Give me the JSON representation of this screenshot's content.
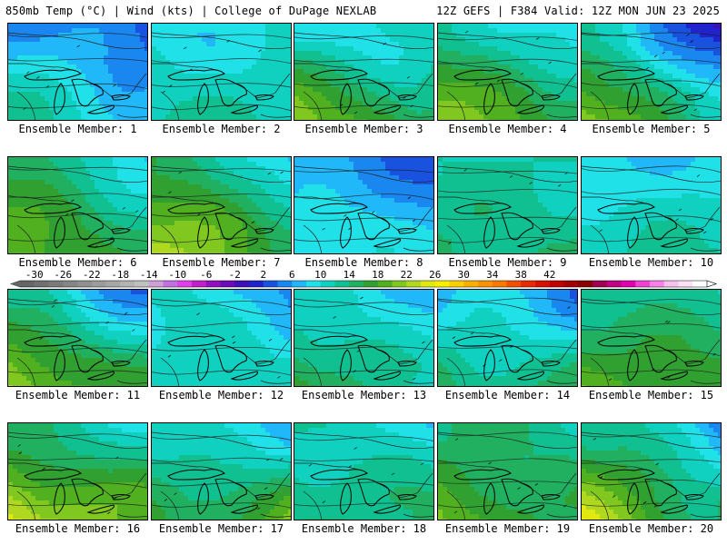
{
  "header": {
    "left_text": "850mb Temp (°C) | Wind (kts) | College of DuPage NEXLAB",
    "right_text": "12Z GEFS | F384 Valid: 12Z MON JUN 23 2025"
  },
  "panel_label_prefix": "Ensemble Member: ",
  "members": [
    {
      "label": "Ensemble Member: 1",
      "base": 8,
      "warm_sw": 4,
      "warm_se": 0,
      "cool_north": 6,
      "cool_ne": 2
    },
    {
      "label": "Ensemble Member: 2",
      "base": 10,
      "warm_sw": 2,
      "warm_se": 2,
      "cool_north": 2,
      "cool_ne": 0
    },
    {
      "label": "Ensemble Member: 3",
      "base": 12,
      "warm_sw": 8,
      "warm_se": 2,
      "cool_north": 4,
      "cool_ne": 0
    },
    {
      "label": "Ensemble Member: 4",
      "base": 14,
      "warm_sw": 6,
      "warm_se": 2,
      "cool_north": 2,
      "cool_ne": 4
    },
    {
      "label": "Ensemble Member: 5",
      "base": 11,
      "warm_sw": 9,
      "warm_se": 0,
      "cool_north": 0,
      "cool_ne": 9
    },
    {
      "label": "Ensemble Member: 6",
      "base": 15,
      "warm_sw": 4,
      "warm_se": 0,
      "cool_north": 2,
      "cool_ne": 4
    },
    {
      "label": "Ensemble Member: 7",
      "base": 16,
      "warm_sw": 6,
      "warm_se": 0,
      "cool_north": 2,
      "cool_ne": 6
    },
    {
      "label": "Ensemble Member: 8",
      "base": 8,
      "warm_sw": 2,
      "warm_se": 0,
      "cool_north": 4,
      "cool_ne": 3
    },
    {
      "label": "Ensemble Member: 9",
      "base": 12,
      "warm_sw": 2,
      "warm_se": 2,
      "cool_north": 0,
      "cool_ne": 0
    },
    {
      "label": "Ensemble Member: 10",
      "base": 10,
      "warm_sw": 2,
      "warm_se": 2,
      "cool_north": 2,
      "cool_ne": 0
    },
    {
      "label": "Ensemble Member: 11",
      "base": 15,
      "warm_sw": 6,
      "warm_se": 0,
      "cool_north": 6,
      "cool_ne": 4
    },
    {
      "label": "Ensemble Member: 12",
      "base": 11,
      "warm_sw": 0,
      "warm_se": 0,
      "cool_north": 3,
      "cool_ne": 2
    },
    {
      "label": "Ensemble Member: 13",
      "base": 11,
      "warm_sw": 5,
      "warm_se": 0,
      "cool_north": 2,
      "cool_ne": 2
    },
    {
      "label": "Ensemble Member: 14",
      "base": 10,
      "warm_sw": 4,
      "warm_se": 4,
      "cool_north": 4,
      "cool_ne": 3
    },
    {
      "label": "Ensemble Member: 15",
      "base": 15,
      "warm_sw": 3,
      "warm_se": 2,
      "cool_north": 2,
      "cool_ne": 2
    },
    {
      "label": "Ensemble Member: 16",
      "base": 17,
      "warm_sw": 6,
      "warm_se": 2,
      "cool_north": 4,
      "cool_ne": 4
    },
    {
      "label": "Ensemble Member: 17",
      "base": 13,
      "warm_sw": 2,
      "warm_se": 6,
      "cool_north": 4,
      "cool_ne": 2
    },
    {
      "label": "Ensemble Member: 18",
      "base": 13,
      "warm_sw": 0,
      "warm_se": 2,
      "cool_north": 3,
      "cool_ne": 2
    },
    {
      "label": "Ensemble Member: 19",
      "base": 15,
      "warm_sw": 4,
      "warm_se": 0,
      "cool_north": 4,
      "cool_ne": 0
    },
    {
      "label": "Ensemble Member: 20",
      "base": 14,
      "warm_sw": 8,
      "warm_se": 0,
      "cool_north": 0,
      "cool_ne": 7
    }
  ],
  "legend": {
    "tick_labels": [
      "-30",
      "-26",
      "-22",
      "-18",
      "-14",
      "-10",
      "-6",
      "-2",
      "2",
      "6",
      "10",
      "14",
      "18",
      "22",
      "26",
      "30",
      "34",
      "38",
      "42"
    ],
    "tick_values": [
      -30,
      -26,
      -22,
      -18,
      -14,
      -10,
      -6,
      -2,
      2,
      6,
      10,
      14,
      18,
      22,
      26,
      30,
      34,
      38,
      42
    ],
    "min": -32,
    "max": 44,
    "step": 2,
    "colors": [
      "#666666",
      "#707070",
      "#7a7a7a",
      "#858585",
      "#909090",
      "#9b9b9b",
      "#a6a6a6",
      "#b3b3b3",
      "#c0c0c0",
      "#cfa0d6",
      "#c070e0",
      "#e040e8",
      "#c020c8",
      "#9010c0",
      "#6a0ab8",
      "#3d10b8",
      "#2222cc",
      "#1a52e0",
      "#1a86f0",
      "#20b8f8",
      "#20e0e8",
      "#10d0c0",
      "#10c090",
      "#20b060",
      "#30a030",
      "#50b020",
      "#80c820",
      "#b0d820",
      "#e0e810",
      "#f8f000",
      "#f8d000",
      "#f8b000",
      "#f89400",
      "#f87800",
      "#f05000",
      "#e82a00",
      "#d81000",
      "#c00000",
      "#a00000",
      "#880000",
      "#a00050",
      "#c00080",
      "#e000b0",
      "#f040d0",
      "#f880e8",
      "#f8c0f0",
      "#fce0f8",
      "#ffffff"
    ]
  }
}
